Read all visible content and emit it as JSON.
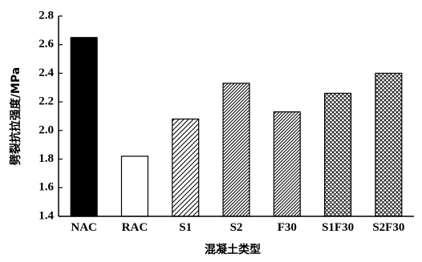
{
  "chart_data": {
    "type": "bar",
    "categories": [
      "NAC",
      "RAC",
      "S1",
      "S2",
      "F30",
      "S1F30",
      "S2F30"
    ],
    "values": [
      2.65,
      1.82,
      2.08,
      2.33,
      2.13,
      2.26,
      2.4
    ],
    "fills": [
      "solid",
      "empty",
      "diag-light",
      "diag-dense",
      "diag-dense",
      "cross",
      "cross"
    ],
    "xlabel": "混凝土类型",
    "ylabel": "劈裂抗拉强度/MPa",
    "ylim": [
      1.4,
      2.8
    ],
    "yticks": [
      "1.4",
      "1.6",
      "1.8",
      "2.0",
      "2.2",
      "2.4",
      "2.6",
      "2.8"
    ],
    "grid": false
  }
}
